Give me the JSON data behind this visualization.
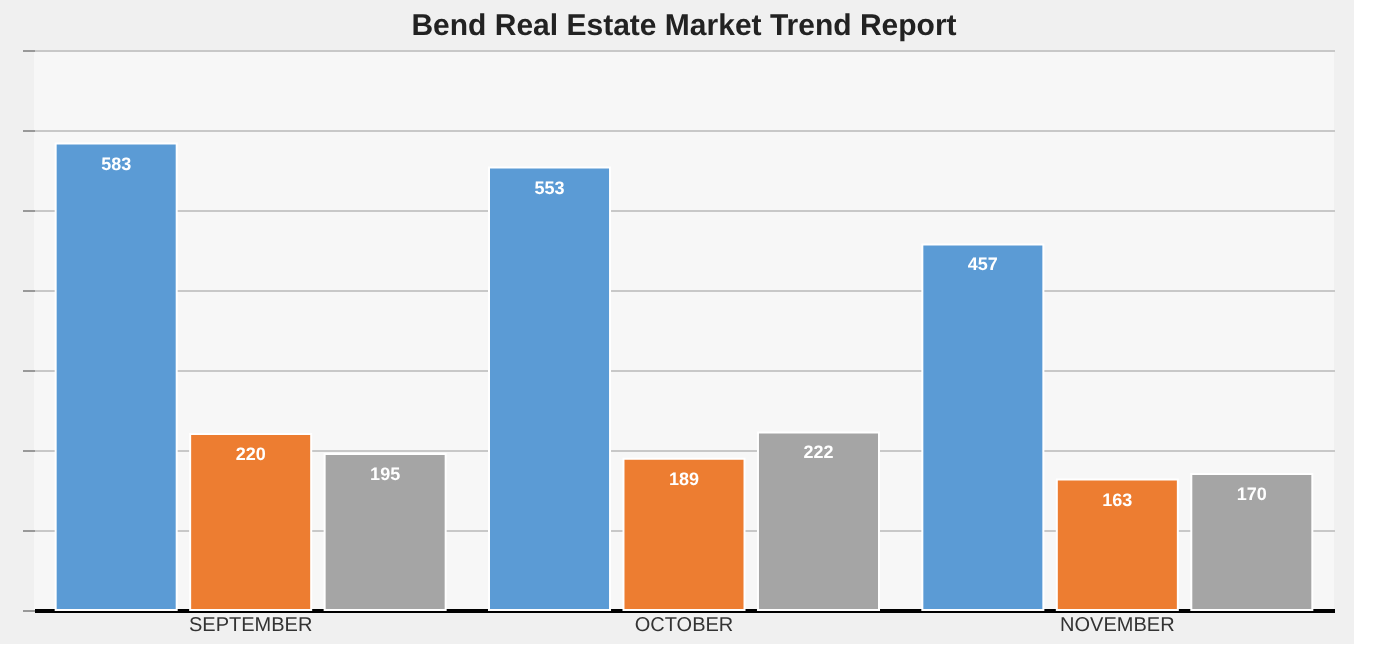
{
  "chart_data": {
    "type": "bar",
    "title": "Bend Real Estate Market Trend Report",
    "categories": [
      "SEPTEMBER",
      "OCTOBER",
      "NOVEMBER"
    ],
    "series": [
      {
        "color": "#5b9bd5",
        "values": [
          583,
          553,
          457
        ]
      },
      {
        "color": "#ed7d31",
        "values": [
          220,
          189,
          163
        ]
      },
      {
        "color": "#a5a5a5",
        "values": [
          195,
          222,
          170
        ]
      }
    ],
    "ylim": [
      0,
      700
    ],
    "grid": "y",
    "tick_labels": "x",
    "data_labels": true
  }
}
